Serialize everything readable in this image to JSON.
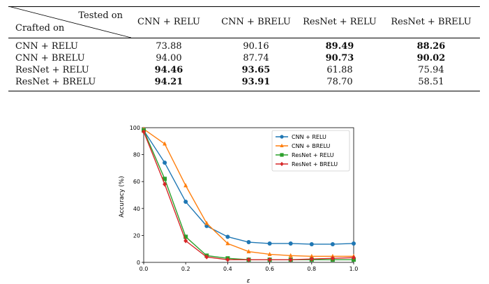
{
  "table": {
    "header_tested": "Tested on",
    "header_crafted": "Crafted on",
    "columns": [
      "CNN + RELU",
      "CNN + BRELU",
      "ResNet + RELU",
      "ResNet + BRELU"
    ],
    "rows": [
      {
        "label": "CNN + RELU",
        "values": [
          "73.88",
          "90.16",
          "89.49",
          "88.26"
        ],
        "bold": [
          false,
          false,
          true,
          true
        ]
      },
      {
        "label": "CNN + BRELU",
        "values": [
          "94.00",
          "87.74",
          "90.73",
          "90.02"
        ],
        "bold": [
          false,
          false,
          true,
          true
        ]
      },
      {
        "label": "ResNet + RELU",
        "values": [
          "94.46",
          "93.65",
          "61.88",
          "75.94"
        ],
        "bold": [
          true,
          true,
          false,
          false
        ]
      },
      {
        "label": "ResNet + BRELU",
        "values": [
          "94.21",
          "93.91",
          "78.70",
          "58.51"
        ],
        "bold": [
          true,
          true,
          false,
          false
        ]
      }
    ]
  },
  "chart_data": {
    "type": "line",
    "xlabel": "ε",
    "ylabel": "Accuracy (%)",
    "xlim": [
      0.0,
      1.0
    ],
    "ylim": [
      0,
      100
    ],
    "xticks": [
      "0.0",
      "0.2",
      "0.4",
      "0.6",
      "0.8",
      "1.0"
    ],
    "yticks": [
      "0",
      "20",
      "40",
      "60",
      "80",
      "100"
    ],
    "x": [
      0.0,
      0.1,
      0.2,
      0.3,
      0.4,
      0.5,
      0.6,
      0.7,
      0.8,
      0.9,
      1.0
    ],
    "legend_position": "top-right",
    "series": [
      {
        "name": "CNN + RELU",
        "color": "#1f77b4",
        "marker": "circle",
        "values": [
          98,
          74,
          45,
          27,
          19,
          15,
          14,
          14,
          13.5,
          13.5,
          14
        ]
      },
      {
        "name": "CNN + BRELU",
        "color": "#ff7f0e",
        "marker": "triangle",
        "values": [
          99,
          88,
          57,
          29,
          14,
          8,
          6,
          5,
          4.5,
          4.5,
          4.5
        ]
      },
      {
        "name": "ResNet + RELU",
        "color": "#2ca02c",
        "marker": "square",
        "values": [
          98,
          62,
          19,
          5,
          3,
          2,
          2,
          2,
          2,
          2,
          2
        ]
      },
      {
        "name": "ResNet + BRELU",
        "color": "#d62728",
        "marker": "diamond",
        "values": [
          97,
          58,
          16,
          4,
          2,
          2,
          2,
          2,
          2.5,
          3,
          3.5
        ]
      }
    ]
  }
}
